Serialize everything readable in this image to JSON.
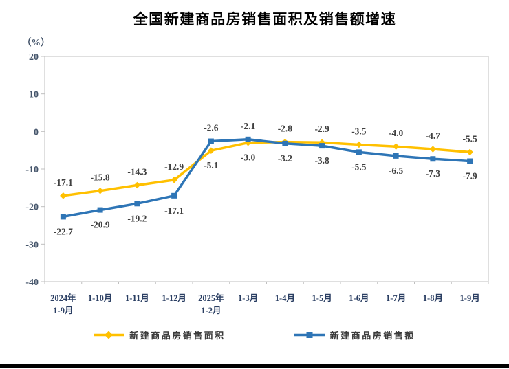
{
  "page": {
    "title": "全国新建商品房销售面积及销售额增速"
  },
  "colors": {
    "axis_border": "#BFBFBF",
    "tick_mark": "#BFBFBF",
    "tick_label": "#44546A",
    "x_label": "#2B3F63",
    "data_label": "#404040",
    "title": "#000000",
    "divider": "#000000",
    "background": "#FFFFFF"
  },
  "chart_data": {
    "type": "line",
    "title": "全国新建商品房销售面积及销售额增速",
    "ylabel": "（%）",
    "xlabel": "",
    "ylim": [
      -40,
      20
    ],
    "yticks": [
      20,
      10,
      0,
      -10,
      -20,
      -30,
      -40
    ],
    "grid": false,
    "data_labels": true,
    "legend_position": "bottom",
    "categories": [
      "2024年\n1-9月",
      "1-10月",
      "1-11月",
      "1-12月",
      "2025年\n1-2月",
      "1-3月",
      "1-4月",
      "1-5月",
      "1-6月",
      "1-7月",
      "1-8月",
      "1-9月"
    ],
    "series": [
      {
        "name": "新建商品房销售面积",
        "color": "#FFC000",
        "marker": "diamond",
        "values": [
          -17.1,
          -15.8,
          -14.3,
          -12.9,
          -5.1,
          -3.0,
          -2.8,
          -2.9,
          -3.5,
          -4.0,
          -4.7,
          -5.5
        ]
      },
      {
        "name": "新建商品房销售额",
        "color": "#2E75B6",
        "marker": "square",
        "values": [
          -22.7,
          -20.9,
          -19.2,
          -17.1,
          -2.6,
          -2.1,
          -3.2,
          -3.8,
          -5.5,
          -6.5,
          -7.3,
          -7.9
        ]
      }
    ]
  }
}
